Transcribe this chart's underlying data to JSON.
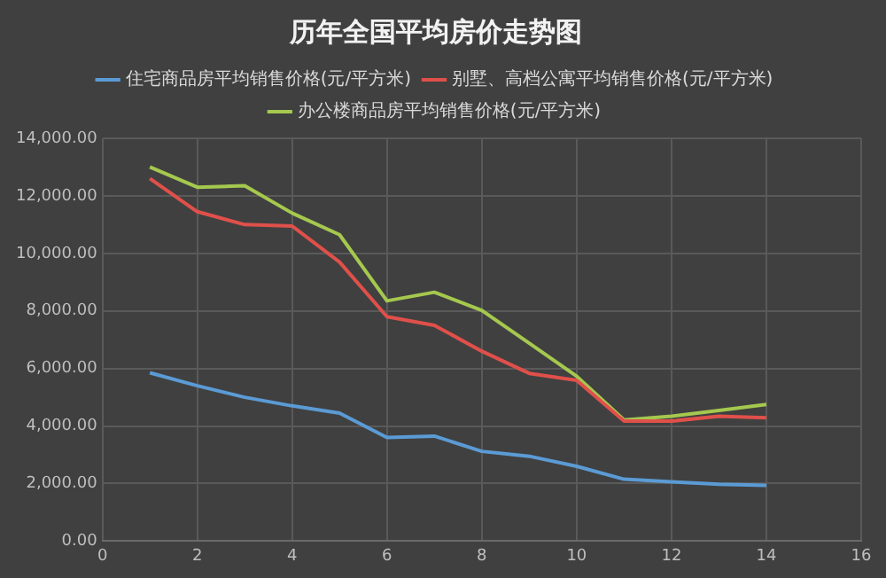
{
  "chart_data": {
    "type": "line",
    "title": "历年全国平均房价走势图",
    "x": [
      1,
      2,
      3,
      4,
      5,
      6,
      7,
      8,
      9,
      10,
      11,
      12,
      13,
      14
    ],
    "series": [
      {
        "name": "住宅商品房平均销售价格(元/平方米)",
        "color": "#5b9bd5",
        "values": [
          5850,
          5400,
          5000,
          4700,
          4450,
          3600,
          3650,
          3120,
          2950,
          2600,
          2150,
          2060,
          1980,
          1940
        ]
      },
      {
        "name": "别墅、高档公寓平均销售价格(元/平方米)",
        "color": "#e0504a",
        "values": [
          12600,
          11450,
          11000,
          10950,
          9700,
          7800,
          7500,
          6600,
          5830,
          5590,
          4170,
          4170,
          4340,
          4290
        ]
      },
      {
        "name": "办公楼商品房平均销售价格(元/平方米)",
        "color": "#a5c84e",
        "values": [
          13000,
          12300,
          12350,
          11400,
          10650,
          8350,
          8650,
          8020,
          6880,
          5730,
          4210,
          4340,
          4540,
          4750
        ]
      }
    ],
    "xlim": [
      0,
      16
    ],
    "xticks": [
      0,
      2,
      4,
      6,
      8,
      10,
      12,
      14,
      16
    ],
    "ylim": [
      0,
      14000
    ],
    "yticks": [
      {
        "value": 0,
        "label": "0.00"
      },
      {
        "value": 2000,
        "label": "2,000.00"
      },
      {
        "value": 4000,
        "label": "4,000.00"
      },
      {
        "value": 6000,
        "label": "6,000.00"
      },
      {
        "value": 8000,
        "label": "8,000.00"
      },
      {
        "value": 10000,
        "label": "10,000.00"
      },
      {
        "value": 12000,
        "label": "12,000.00"
      },
      {
        "value": 14000,
        "label": "14,000.00"
      }
    ],
    "grid": true,
    "legend": "top",
    "marker": "none",
    "line_style": "solid"
  }
}
